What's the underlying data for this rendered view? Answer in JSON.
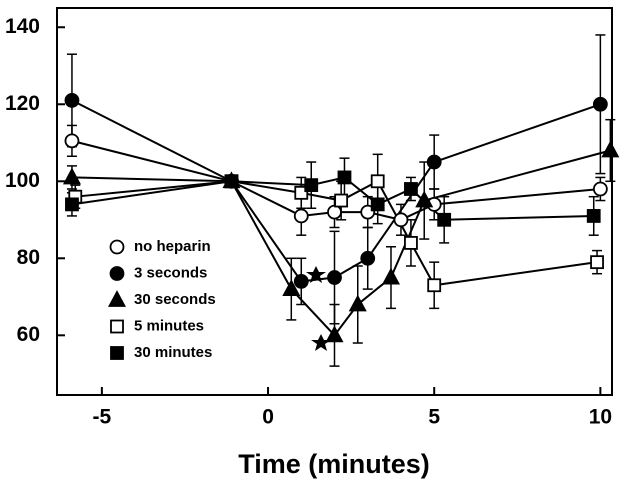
{
  "chart_data": {
    "type": "line",
    "x_label": "Time (minutes)",
    "xlim": [
      -6.35,
      10.35
    ],
    "xticks": [
      -5,
      0,
      5,
      10
    ],
    "ylim": [
      44.5,
      145
    ],
    "yticks": [
      60,
      80,
      100,
      120,
      140
    ],
    "legend": "lower left",
    "series": [
      {
        "name": "no heparin",
        "color": "#000000",
        "marker": "circle-open",
        "x": [
          -5.9,
          -1.1,
          1.0,
          2.0,
          3.0,
          4.0,
          5.0,
          10.0
        ],
        "values": [
          110.5,
          100,
          91,
          92,
          92,
          90,
          94,
          98
        ],
        "errors": [
          4,
          0,
          5,
          4,
          4,
          4,
          4,
          3
        ]
      },
      {
        "name": "3 seconds",
        "color": "#000000",
        "marker": "circle-filled",
        "x": [
          -5.9,
          -1.1,
          1.0,
          2.0,
          3.0,
          5.0,
          10.0
        ],
        "values": [
          121,
          100,
          74,
          75,
          80,
          105,
          120
        ],
        "errors": [
          12,
          0,
          6,
          12,
          8,
          7,
          18
        ]
      },
      {
        "name": "30 seconds",
        "color": "#000000",
        "marker": "triangle-filled",
        "x": [
          -5.9,
          -1.1,
          0.7,
          2.0,
          2.7,
          3.7,
          4.7,
          10.3
        ],
        "values": [
          101,
          100,
          72,
          60,
          68,
          75,
          95,
          108
        ],
        "errors": [
          3,
          0,
          8,
          8,
          10,
          8,
          10,
          8
        ]
      },
      {
        "name": "5 minutes",
        "color": "#000000",
        "marker": "square-open",
        "x": [
          -5.8,
          -1.1,
          1.0,
          2.2,
          3.3,
          4.3,
          5.0,
          9.9
        ],
        "values": [
          96,
          100,
          97,
          95,
          100,
          84,
          73,
          79
        ],
        "errors": [
          3,
          0,
          4,
          5,
          7,
          6,
          6,
          3
        ]
      },
      {
        "name": "30 minutes",
        "color": "#000000",
        "marker": "square-filled",
        "x": [
          -5.9,
          -1.1,
          1.3,
          2.3,
          3.3,
          4.3,
          5.3,
          9.8
        ],
        "values": [
          94,
          100,
          99,
          101,
          94,
          98,
          90,
          91
        ],
        "errors": [
          3,
          0,
          6,
          5,
          5,
          3,
          6,
          5
        ]
      }
    ]
  }
}
